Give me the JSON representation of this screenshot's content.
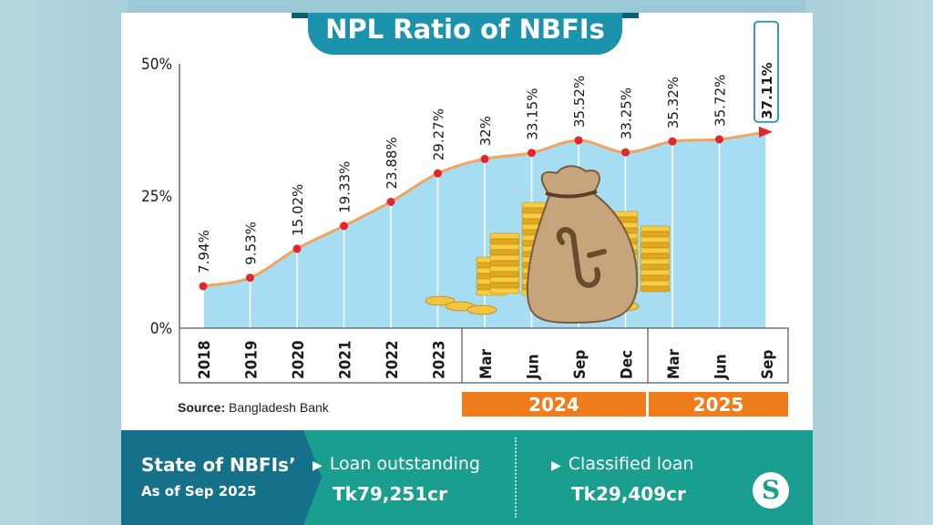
{
  "title": "NPL Ratio of NBFIs",
  "source_label": "Source:",
  "source_text": "Bangladesh Bank",
  "year_groups": [
    "2024",
    "2025"
  ],
  "footer": {
    "title": "State of NBFIs’",
    "subtitle": "As of Sep 2025",
    "loan_label": "Loan outstanding",
    "loan_value": "Tk79,251cr",
    "classified_label": "Classified loan",
    "classified_value": "Tk29,409cr",
    "logo": "S"
  },
  "colors": {
    "line": "#f2a35e",
    "area": "#a7ddf2",
    "marker": "#e3262c",
    "title_bg": "#1c93ad",
    "year_bar": "#f07c1c",
    "footer_left": "#15708a",
    "footer_right": "#1a9e8f"
  },
  "chart_data": {
    "type": "area",
    "categories": [
      "2018",
      "2019",
      "2020",
      "2021",
      "2022",
      "2023",
      "Mar",
      "Jun",
      "Sep",
      "Dec",
      "Mar",
      "Jun",
      "Sep"
    ],
    "values": [
      7.94,
      9.53,
      15.02,
      19.33,
      23.88,
      29.27,
      32,
      33.15,
      35.52,
      33.25,
      35.32,
      35.72,
      37.11
    ],
    "value_labels": [
      "7.94%",
      "9.53%",
      "15.02%",
      "19.33%",
      "23.88%",
      "29.27%",
      "32%",
      "33.15%",
      "35.52%",
      "33.25%",
      "35.32%",
      "35.72%",
      "37.11%"
    ],
    "y_ticks": [
      "0%",
      "25%",
      "50%"
    ],
    "ylim": [
      0,
      50
    ],
    "grid": "vertical lines at each category",
    "highlight_last": true
  }
}
